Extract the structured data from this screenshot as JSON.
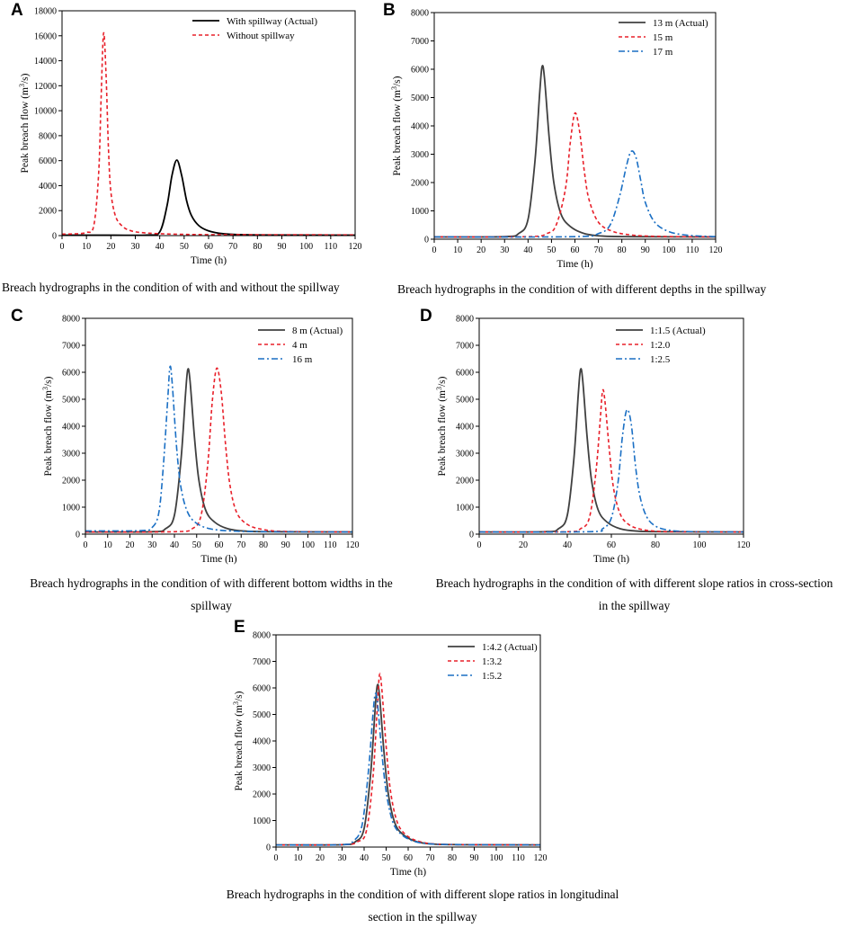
{
  "colors": {
    "black": "#000000",
    "red": "#e8202a",
    "blue": "#1a6fc4"
  },
  "chart_data": [
    {
      "id": "A",
      "type": "line",
      "panel_letter": "A",
      "xlabel": "Time (h)",
      "ylabel_main": "Peak breach flow (m",
      "ylabel_sup": "3",
      "ylabel_end": "/s)",
      "xlim": [
        0,
        120
      ],
      "ylim": [
        0,
        18000
      ],
      "xticks": [
        0,
        10,
        20,
        30,
        40,
        50,
        60,
        70,
        80,
        90,
        100,
        110,
        120
      ],
      "yticks": [
        0,
        2000,
        4000,
        6000,
        8000,
        10000,
        12000,
        14000,
        16000,
        18000
      ],
      "legend_position": "top-right",
      "caption": [
        "Breach hydrographs in the condition of with and without the spillway"
      ],
      "series": [
        {
          "name": "With spillway (Actual)",
          "color": "#000000",
          "style": "solid",
          "x": [
            0,
            20,
            35,
            40,
            43,
            45,
            47,
            49,
            51,
            53,
            56,
            60,
            66,
            75,
            90,
            120
          ],
          "y": [
            30,
            35,
            45,
            300,
            2400,
            4800,
            6050,
            4800,
            2800,
            1600,
            800,
            380,
            150,
            70,
            40,
            30
          ]
        },
        {
          "name": "Without spillway",
          "color": "#e8202a",
          "style": "dashed",
          "x": [
            0,
            5,
            10,
            13,
            15,
            16,
            17,
            18,
            19,
            20,
            22,
            25,
            28,
            32,
            40,
            50,
            60,
            120
          ],
          "y": [
            120,
            140,
            250,
            800,
            5000,
            11000,
            16200,
            13000,
            7000,
            3500,
            1500,
            700,
            400,
            250,
            150,
            100,
            80,
            60
          ]
        }
      ]
    },
    {
      "id": "B",
      "type": "line",
      "panel_letter": "B",
      "xlabel": "Time (h)",
      "ylabel_main": "Peak breach flow (m",
      "ylabel_sup": "3",
      "ylabel_end": "/s)",
      "xlim": [
        0,
        120
      ],
      "ylim": [
        0,
        8000
      ],
      "xticks": [
        0,
        10,
        20,
        30,
        40,
        50,
        60,
        70,
        80,
        90,
        100,
        110,
        120
      ],
      "yticks": [
        0,
        1000,
        2000,
        3000,
        4000,
        5000,
        6000,
        7000,
        8000
      ],
      "legend_position": "top-right",
      "caption": [
        "Breach hydrographs in the condition of with different depths in the spillway"
      ],
      "series": [
        {
          "name": "13 m (Actual)",
          "color": "#404040",
          "style": "solid",
          "x": [
            0,
            30,
            36,
            40,
            43,
            45,
            46,
            47,
            49,
            51,
            54,
            58,
            64,
            72,
            85,
            120
          ],
          "y": [
            80,
            90,
            200,
            700,
            2800,
            5200,
            6100,
            5700,
            3600,
            2000,
            900,
            450,
            200,
            110,
            90,
            80
          ]
        },
        {
          "name": "15 m",
          "color": "#e8202a",
          "style": "dashed",
          "x": [
            0,
            40,
            48,
            52,
            56,
            58,
            60,
            62,
            64,
            66,
            70,
            76,
            84,
            95,
            120
          ],
          "y": [
            80,
            90,
            200,
            500,
            1800,
            3400,
            4450,
            3800,
            2400,
            1400,
            600,
            280,
            150,
            100,
            80
          ]
        },
        {
          "name": "17 m",
          "color": "#1a6fc4",
          "style": "dashdot",
          "x": [
            0,
            60,
            70,
            75,
            79,
            82,
            84,
            86,
            88,
            90,
            94,
            100,
            108,
            120
          ],
          "y": [
            80,
            90,
            200,
            500,
            1500,
            2600,
            3100,
            2900,
            2100,
            1300,
            600,
            270,
            140,
            90
          ]
        }
      ]
    },
    {
      "id": "C",
      "type": "line",
      "panel_letter": "C",
      "xlabel": "Time (h)",
      "ylabel_main": "Peak breach flow (m",
      "ylabel_sup": "3",
      "ylabel_end": "/s)",
      "xlim": [
        0,
        120
      ],
      "ylim": [
        0,
        8000
      ],
      "xticks": [
        0,
        10,
        20,
        30,
        40,
        50,
        60,
        70,
        80,
        90,
        100,
        110,
        120
      ],
      "yticks": [
        0,
        1000,
        2000,
        3000,
        4000,
        5000,
        6000,
        7000,
        8000
      ],
      "legend_position": "top-right",
      "caption": [
        "Breach hydrographs in the condition of with different bottom widths in the",
        "spillway"
      ],
      "series": [
        {
          "name": "8 m (Actual)",
          "color": "#404040",
          "style": "solid",
          "x": [
            0,
            30,
            36,
            40,
            43,
            45,
            46,
            47,
            49,
            51,
            54,
            58,
            64,
            72,
            85,
            120
          ],
          "y": [
            80,
            90,
            200,
            700,
            2800,
            5200,
            6100,
            5700,
            3600,
            2000,
            900,
            450,
            200,
            110,
            90,
            80
          ]
        },
        {
          "name": "4 m",
          "color": "#e8202a",
          "style": "dashed",
          "x": [
            0,
            40,
            48,
            52,
            55,
            57,
            59,
            61,
            63,
            65,
            68,
            73,
            80,
            90,
            120
          ],
          "y": [
            80,
            90,
            200,
            700,
            2600,
            4900,
            6150,
            5300,
            3300,
            1800,
            800,
            350,
            170,
            100,
            80
          ]
        },
        {
          "name": "16 m",
          "color": "#1a6fc4",
          "style": "dashdot",
          "x": [
            0,
            25,
            30,
            33,
            35,
            37,
            38,
            39,
            41,
            43,
            46,
            50,
            56,
            65,
            80,
            120
          ],
          "y": [
            120,
            130,
            250,
            800,
            2500,
            5000,
            6200,
            5600,
            3200,
            1700,
            800,
            400,
            200,
            120,
            90,
            80
          ]
        }
      ]
    },
    {
      "id": "D",
      "type": "line",
      "panel_letter": "D",
      "xlabel": "Time (h)",
      "ylabel_main": "Peak breach flow (m",
      "ylabel_sup": "3",
      "ylabel_end": "/s)",
      "xlim": [
        0,
        120
      ],
      "ylim": [
        0,
        8000
      ],
      "xticks": [
        0,
        20,
        40,
        60,
        80,
        100,
        120
      ],
      "yticks": [
        0,
        1000,
        2000,
        3000,
        4000,
        5000,
        6000,
        7000,
        8000
      ],
      "legend_position": "top-right",
      "caption": [
        "Breach hydrographs in the condition of with different slope ratios in cross-section",
        "in the spillway"
      ],
      "series": [
        {
          "name": "1:1.5 (Actual)",
          "color": "#404040",
          "style": "solid",
          "x": [
            0,
            30,
            36,
            40,
            43,
            45,
            46,
            47,
            49,
            51,
            54,
            58,
            64,
            72,
            85,
            120
          ],
          "y": [
            80,
            90,
            200,
            700,
            2800,
            5200,
            6100,
            5700,
            3600,
            2000,
            900,
            450,
            200,
            110,
            90,
            80
          ]
        },
        {
          "name": "1:2.0",
          "color": "#e8202a",
          "style": "dashed",
          "x": [
            0,
            40,
            46,
            50,
            53,
            55,
            56,
            57,
            59,
            61,
            64,
            68,
            74,
            82,
            95,
            120
          ],
          "y": [
            80,
            90,
            200,
            600,
            2300,
            4300,
            5300,
            5000,
            3200,
            1700,
            750,
            350,
            170,
            100,
            85,
            80
          ]
        },
        {
          "name": "1:2.5",
          "color": "#1a6fc4",
          "style": "dashdot",
          "x": [
            0,
            50,
            56,
            60,
            63,
            65,
            67,
            69,
            71,
            73,
            76,
            80,
            86,
            95,
            120
          ],
          "y": [
            80,
            90,
            200,
            600,
            1900,
            3600,
            4600,
            4100,
            2500,
            1400,
            650,
            300,
            150,
            95,
            80
          ]
        }
      ]
    },
    {
      "id": "E",
      "type": "line",
      "panel_letter": "E",
      "xlabel": "Time (h)",
      "ylabel_main": "Peak breach flow (m",
      "ylabel_sup": "3",
      "ylabel_end": "/s)",
      "xlim": [
        0,
        120
      ],
      "ylim": [
        0,
        8000
      ],
      "xticks": [
        0,
        10,
        20,
        30,
        40,
        50,
        60,
        70,
        80,
        90,
        100,
        110,
        120
      ],
      "yticks": [
        0,
        1000,
        2000,
        3000,
        4000,
        5000,
        6000,
        7000,
        8000
      ],
      "legend_position": "top-right",
      "caption": [
        "Breach hydrographs in the condition of with different slope ratios in longitudinal",
        "section in the spillway"
      ],
      "series": [
        {
          "name": "1:4.2 (Actual)",
          "color": "#404040",
          "style": "solid",
          "x": [
            0,
            30,
            36,
            40,
            43,
            45,
            46,
            47,
            49,
            51,
            54,
            58,
            64,
            72,
            85,
            120
          ],
          "y": [
            80,
            90,
            200,
            700,
            2800,
            5200,
            6100,
            5700,
            3600,
            2000,
            900,
            450,
            200,
            110,
            90,
            80
          ]
        },
        {
          "name": "1:3.2",
          "color": "#e8202a",
          "style": "dashed",
          "x": [
            0,
            30,
            37,
            41,
            44,
            46,
            47,
            48,
            50,
            52,
            55,
            59,
            65,
            73,
            86,
            120
          ],
          "y": [
            80,
            90,
            200,
            600,
            2600,
            5300,
            6500,
            6000,
            3800,
            2100,
            950,
            460,
            210,
            110,
            90,
            80
          ]
        },
        {
          "name": "1:5.2",
          "color": "#1a6fc4",
          "style": "dashdot",
          "x": [
            0,
            30,
            35,
            39,
            42,
            44,
            45,
            46,
            48,
            50,
            53,
            57,
            63,
            71,
            84,
            120
          ],
          "y": [
            80,
            90,
            220,
            800,
            2900,
            5000,
            5750,
            5500,
            3600,
            2100,
            950,
            470,
            210,
            115,
            90,
            80
          ]
        }
      ]
    }
  ]
}
